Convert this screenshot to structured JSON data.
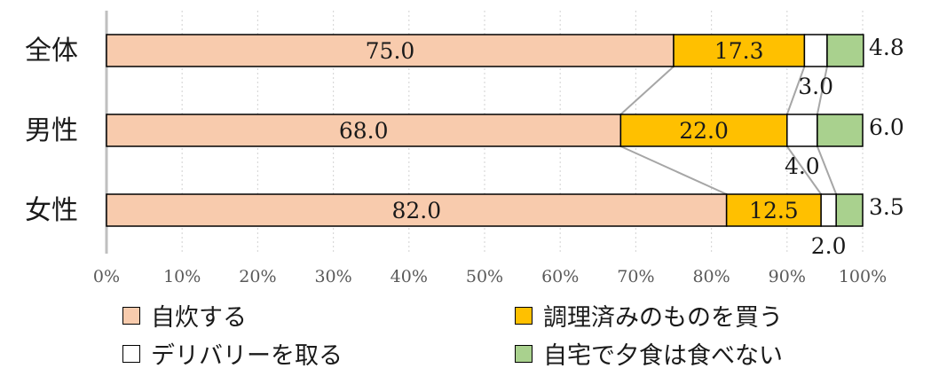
{
  "chart_data": {
    "type": "bar",
    "orientation": "horizontal",
    "stacked": true,
    "categories": [
      "全体",
      "男性",
      "女性"
    ],
    "series": [
      {
        "name": "自炊する",
        "values": [
          75.0,
          68.0,
          82.0
        ],
        "color": "#f8cbad",
        "labels": [
          "75.0",
          "68.0",
          "82.0"
        ]
      },
      {
        "name": "調理済みのものを買う",
        "values": [
          17.3,
          22.0,
          12.5
        ],
        "color": "#ffc000",
        "labels": [
          "17.3",
          "22.0",
          "12.5"
        ]
      },
      {
        "name": "デリバリーを取る",
        "values": [
          3.0,
          4.0,
          2.0
        ],
        "color": "#ffffff",
        "labels": [
          "3.0",
          "4.0",
          "2.0"
        ]
      },
      {
        "name": "自宅で夕食は食べない",
        "values": [
          4.8,
          6.0,
          3.5
        ],
        "color": "#a9d18e",
        "labels": [
          "4.8",
          "6.0",
          "3.5"
        ]
      }
    ],
    "xticks": [
      "0%",
      "10%",
      "20%",
      "30%",
      "40%",
      "50%",
      "60%",
      "70%",
      "80%",
      "90%",
      "100%"
    ],
    "xlim": [
      0,
      100
    ],
    "grid": true,
    "series_lines": true,
    "legend_position": "bottom"
  }
}
